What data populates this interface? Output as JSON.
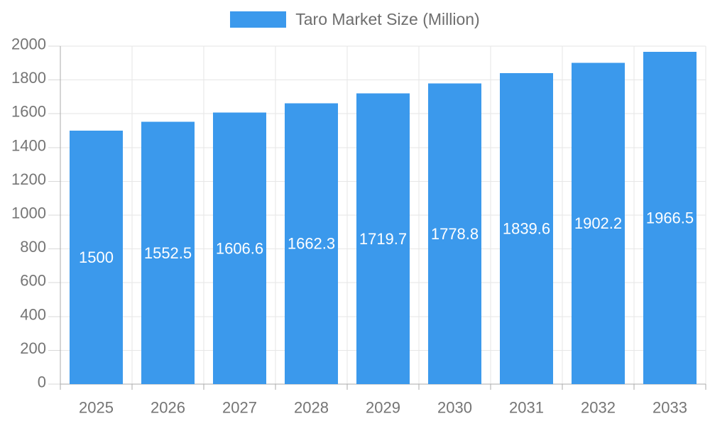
{
  "chart_data": {
    "type": "bar",
    "title": "",
    "xlabel": "",
    "ylabel": "",
    "categories": [
      "2025",
      "2026",
      "2027",
      "2028",
      "2029",
      "2030",
      "2031",
      "2032",
      "2033"
    ],
    "series": [
      {
        "name": "Taro Market Size (Million)",
        "values": [
          1500,
          1552.5,
          1606.6,
          1662.3,
          1719.7,
          1778.8,
          1839.6,
          1902.2,
          1966.5
        ],
        "value_labels": [
          "1500",
          "1552.5",
          "1606.6",
          "1662.3",
          "1719.7",
          "1778.8",
          "1839.6",
          "1902.2",
          "1966.5"
        ]
      }
    ],
    "ylim": [
      0,
      2000
    ],
    "ytick_step": 200,
    "ytick_labels": [
      "0",
      "200",
      "400",
      "600",
      "800",
      "1000",
      "1200",
      "1400",
      "1600",
      "1800",
      "2000"
    ],
    "grid": true,
    "legend_position": "top"
  },
  "colors": {
    "bar": "#3b99ec",
    "gridline": "#e6e6e6",
    "axis": "#ababab",
    "y_tick": "#d8d8d8",
    "x_tick": "#ababab",
    "axis_text": "#757575",
    "legend_text": "#6e6e6e",
    "value_label": "#ffffff",
    "background": "#ffffff"
  }
}
